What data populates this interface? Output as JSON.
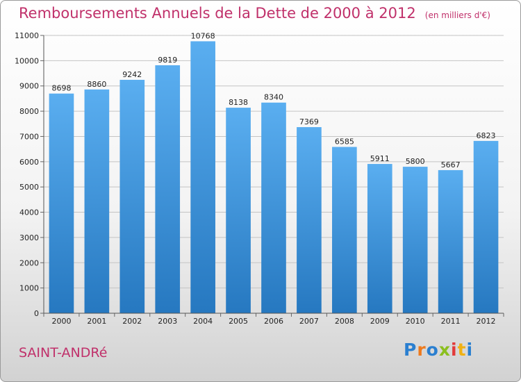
{
  "title": "Remboursements Annuels de la Dette de 2000 à 2012",
  "subtitle": "(en milliers d'€)",
  "place": "SAINT-ANDRé",
  "logo": {
    "letters": [
      "P",
      "r",
      "o",
      "x",
      "i",
      "t",
      "i"
    ],
    "colors": [
      "#2a7fd0",
      "#ee7a1d",
      "#2a7fd0",
      "#8bbf1e",
      "#e23a3a",
      "#f0b114",
      "#2a7fd0"
    ]
  },
  "colors": {
    "bar": "#4b9bdd",
    "title": "#c0306a"
  },
  "chart_data": {
    "type": "bar",
    "title": "Remboursements Annuels de la Dette de 2000 à 2012",
    "subtitle": "(en milliers d'€)",
    "categories": [
      "2000",
      "2001",
      "2002",
      "2003",
      "2004",
      "2005",
      "2006",
      "2007",
      "2008",
      "2009",
      "2010",
      "2011",
      "2012"
    ],
    "values": [
      8698,
      8860,
      9242,
      9819,
      10768,
      8138,
      8340,
      7369,
      6585,
      5911,
      5800,
      5667,
      6823
    ],
    "ylim": [
      0,
      11000
    ],
    "yticks": [
      0,
      1000,
      2000,
      3000,
      4000,
      5000,
      6000,
      7000,
      8000,
      9000,
      10000,
      11000
    ],
    "grid": true,
    "xlabel": "",
    "ylabel": ""
  }
}
